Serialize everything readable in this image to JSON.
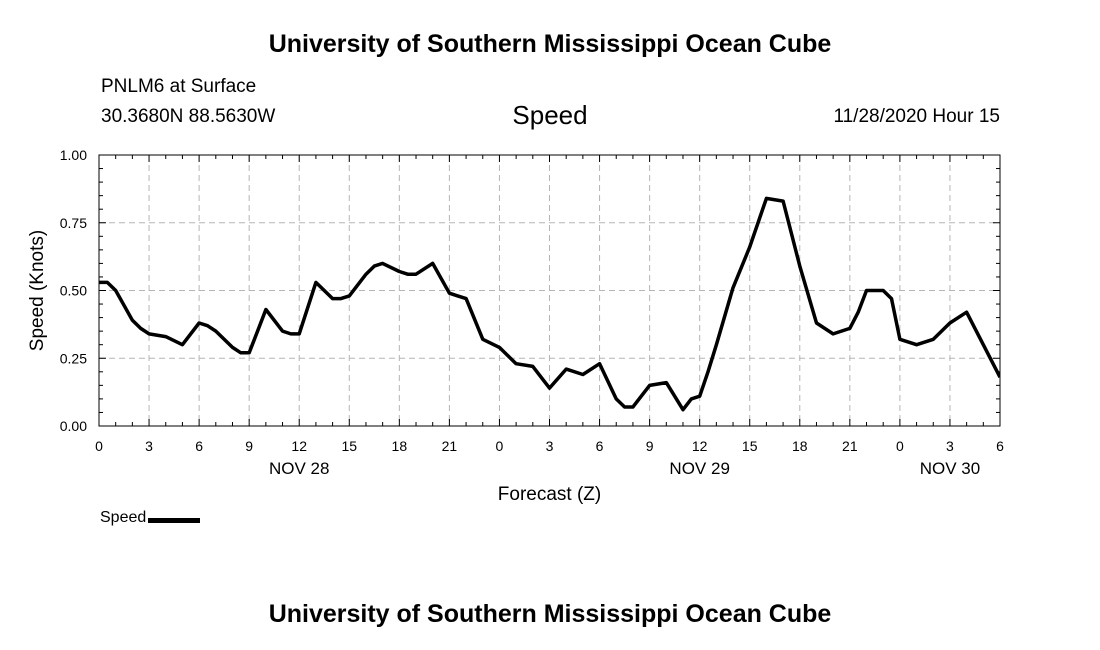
{
  "header": {
    "title": "University of Southern Mississippi Ocean Cube",
    "station": "PNLM6 at Surface",
    "coords": "30.3680N 88.5630W",
    "subtitle": "Speed",
    "timestamp": "11/28/2020 Hour 15"
  },
  "footer": {
    "title": "University of Southern Mississippi Ocean Cube"
  },
  "legend": {
    "label": "Speed"
  },
  "chart_data": {
    "type": "line",
    "title": "Speed",
    "xlabel": "Forecast (Z)",
    "ylabel": "Speed (Knots)",
    "xlim": [
      0,
      54
    ],
    "ylim": [
      0,
      1.0
    ],
    "yticks": [
      "0.00",
      "0.25",
      "0.50",
      "0.75",
      "1.00"
    ],
    "xticks": [
      "0",
      "3",
      "6",
      "9",
      "12",
      "15",
      "18",
      "21",
      "0",
      "3",
      "6",
      "9",
      "12",
      "15",
      "18",
      "21",
      "0",
      "3",
      "6"
    ],
    "date_labels": [
      {
        "label": "NOV 28",
        "at": 12
      },
      {
        "label": "NOV 29",
        "at": 36
      },
      {
        "label": "NOV 30",
        "at": 51
      }
    ],
    "grid": true,
    "legend_position": "bottom-left",
    "color": "#000000",
    "series": [
      {
        "name": "Speed",
        "x": [
          0,
          0.5,
          1,
          2,
          2.5,
          3,
          4,
          5,
          6,
          6.5,
          7,
          8,
          8.5,
          9,
          10,
          11,
          11.5,
          12,
          13,
          14,
          14.5,
          15,
          16,
          16.5,
          17,
          18,
          18.5,
          19,
          20,
          21,
          21.5,
          22,
          23,
          24,
          25,
          26,
          27,
          28,
          29,
          30,
          31,
          31.5,
          32,
          33,
          34,
          35,
          35.5,
          36,
          36.5,
          37,
          38,
          39,
          40,
          41,
          42,
          43,
          44,
          45,
          45.5,
          46,
          47,
          47.5,
          48,
          49,
          50,
          51,
          52,
          53,
          54
        ],
        "y": [
          0.53,
          0.53,
          0.5,
          0.39,
          0.36,
          0.34,
          0.33,
          0.3,
          0.38,
          0.37,
          0.35,
          0.29,
          0.27,
          0.27,
          0.43,
          0.35,
          0.34,
          0.34,
          0.53,
          0.47,
          0.47,
          0.48,
          0.56,
          0.59,
          0.6,
          0.57,
          0.56,
          0.56,
          0.6,
          0.49,
          0.48,
          0.47,
          0.32,
          0.29,
          0.23,
          0.22,
          0.14,
          0.21,
          0.19,
          0.23,
          0.1,
          0.07,
          0.07,
          0.15,
          0.16,
          0.06,
          0.1,
          0.11,
          0.2,
          0.3,
          0.51,
          0.66,
          0.84,
          0.83,
          0.59,
          0.38,
          0.34,
          0.36,
          0.42,
          0.5,
          0.5,
          0.47,
          0.32,
          0.3,
          0.32,
          0.38,
          0.42,
          0.3,
          0.18
        ]
      }
    ]
  }
}
